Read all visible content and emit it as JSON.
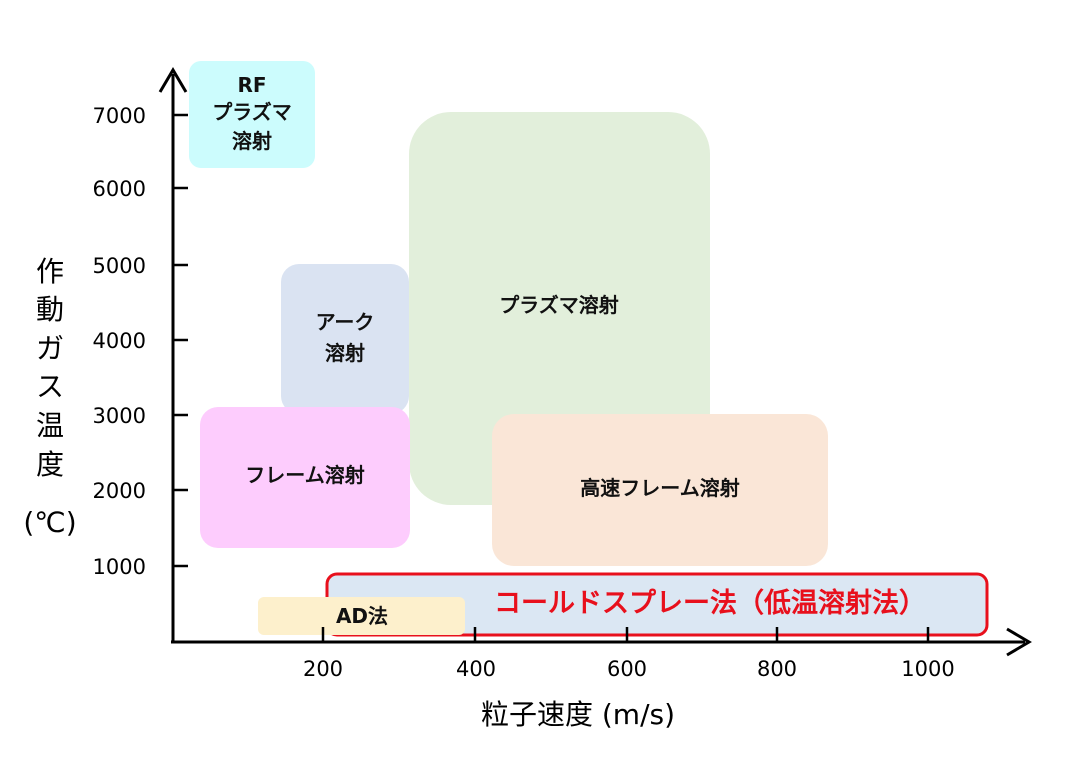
{
  "axes": {
    "x_label": "粒子速度 (m/s)",
    "y_label_chars": [
      "作",
      "動",
      "ガ",
      "ス",
      "温",
      "度"
    ],
    "y_unit": "(℃)",
    "x_ticks": [
      "200",
      "400",
      "600",
      "800",
      "1000"
    ],
    "y_ticks": [
      "1000",
      "2000",
      "3000",
      "4000",
      "5000",
      "6000",
      "7000"
    ]
  },
  "regions": {
    "rf_plasma": {
      "lines": [
        "RF",
        "プラズマ",
        "溶射"
      ],
      "color": "#ccfcfd"
    },
    "arc": {
      "lines": [
        "アーク",
        "溶射"
      ],
      "color": "#dae3f2"
    },
    "plasma": {
      "label": "プラズマ溶射",
      "color": "#e2efdb"
    },
    "flame": {
      "label": "フレーム溶射",
      "color": "#fdccfd"
    },
    "hvof": {
      "label": "高速フレーム溶射",
      "color": "#fae6d7"
    },
    "cold_spray": {
      "label": "コールドスプレー法（低温溶射法）",
      "fill": "#dbe7f3",
      "border": "#e8101c",
      "text_color": "#e8101c"
    },
    "ad": {
      "label": "AD法",
      "color": "#fdf0cc"
    }
  }
}
